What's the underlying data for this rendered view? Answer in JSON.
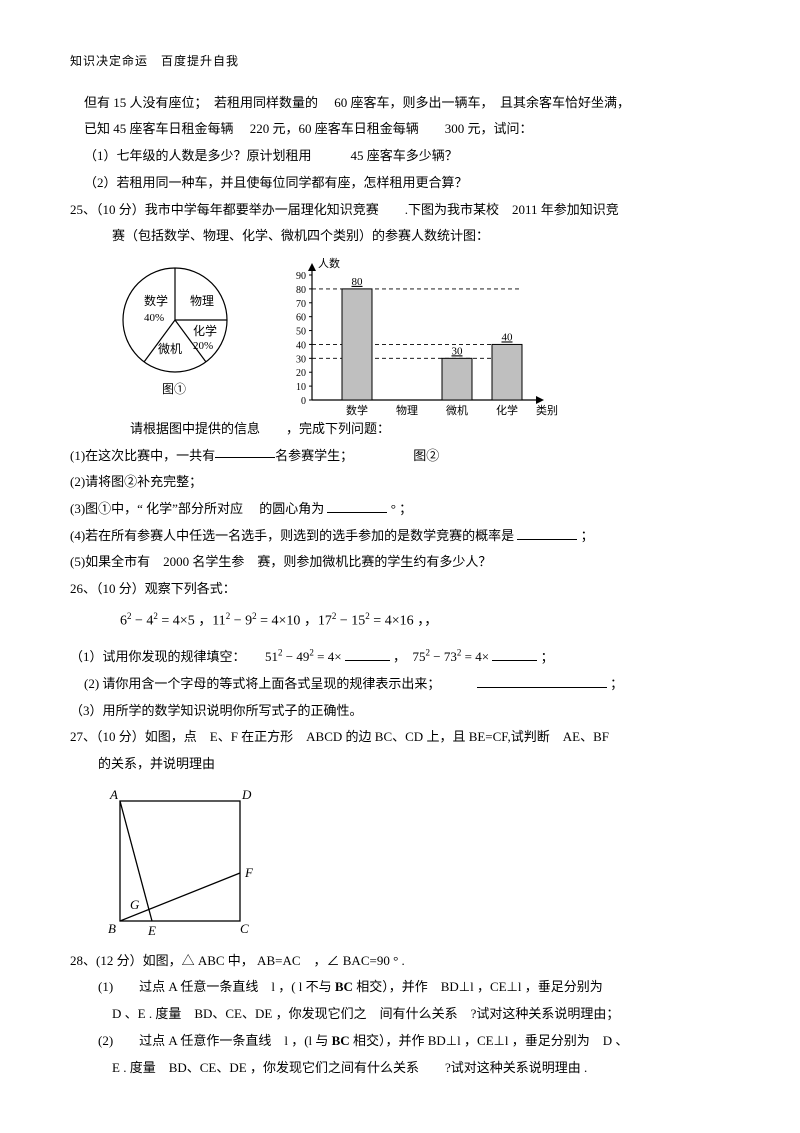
{
  "header": "知识决定命运　百度提升自我",
  "intro_lines": [
    "但有 15 人没有座位；　若租用同样数量的　 60 座客车，则多出一辆车，　且其余客车恰好坐满，",
    "已知 45 座客车日租金每辆　 220 元，60 座客车日租金每辆　　300 元，试问：",
    "（1）七年级的人数是多少？原计划租用　　　45 座客车多少辆？",
    "（2）若租用同一种车，并且使每位同学都有座，怎样租用更合算？"
  ],
  "q25": {
    "label": "25、（10 分）我市中学每年都要举办一届理化知识竞赛　　.下图为我市某校　2011 年参加知识竞",
    "label2": "赛（包括数学、物理、化学、微机四个类别）的参赛人数统计图：",
    "pie": {
      "title": "图①",
      "slices": [
        {
          "label": "数学",
          "sub": "40%",
          "color": "#ffffff"
        },
        {
          "label": "物理",
          "color": "#ffffff"
        },
        {
          "label": "化学",
          "sub": "20%",
          "color": "#ffffff"
        },
        {
          "label": "微机",
          "color": "#ffffff"
        }
      ],
      "stroke": "#000"
    },
    "bar": {
      "title": "图②",
      "y_label": "人数",
      "x_label": "类别",
      "y_max": 90,
      "y_step": 10,
      "categories": [
        "数学",
        "物理",
        "微机",
        "化学"
      ],
      "values": [
        80,
        null,
        30,
        40
      ],
      "value_labels": [
        "80",
        "",
        "30",
        "40"
      ],
      "bar_fill": "#bfbfbf",
      "bar_stroke": "#000",
      "axis_color": "#000",
      "grid_dash": "4,3",
      "dashed_refs": [
        80,
        40,
        30
      ]
    },
    "after": "请根据图中提供的信息　　，完成下列问题：",
    "sub1": "(1)在这次比赛中，一共有",
    "sub1_tail": "名参赛学生；",
    "sub2": "(2)请将图②补充完整；",
    "sub3_a": "(3)图①中，“ 化学”部分所对应　 的圆心角为",
    "sub3_b": "° ；",
    "sub4_a": "(4)若在所有参赛人中任选一名选手，则选到的选手参加的是数学竞赛的概率是",
    "sub4_b": "；",
    "sub5": "(5)如果全市有　2000 名学生参　赛，则参加微机比赛的学生约有多少人？"
  },
  "q26": {
    "label": "26、（10 分）观察下列各式：",
    "eq_line": "6² − 4² = 4×5 ，11² − 9² = 4×10 ，17² − 15² = 4×16 ，，",
    "sub1_a": "（1）试用你发现的规律填空：　　51² − 49² = 4×",
    "sub1_mid": "，　75² − 73² = 4×",
    "sub1_end": "；",
    "sub2_a": "(2) 请你用含一个字母的等式将上面各式呈现的规律表示出来；",
    "sub2_b": "；",
    "sub3": "（3）用所学的数学知识说明你所写式子的正确性。"
  },
  "q27": {
    "label": "27、（10 分）如图，点　E、F 在正方形　ABCD 的边 BC、CD 上，且 BE=CF,试判断　AE、BF",
    "label2": "的关系，并说明理由",
    "diagram": {
      "A": "A",
      "B": "B",
      "C": "C",
      "D": "D",
      "E": "E",
      "F": "F",
      "G": "G",
      "stroke": "#000"
    }
  },
  "q28": {
    "label": "28、(12 分）如图，△ ABC 中， AB=AC　，∠ BAC=90 ° .",
    "s1a": "(1)　　过点 A 任意一条直线　l ，( l 不与 ",
    "s1bold": "BC",
    "s1b": " 相交），并作　BD⊥l ，CE⊥l ，垂足分别为",
    "s1c": "D 、E . 度量　BD、CE、DE ，你发现它们之　间有什么关系　?试对这种关系说明理由；",
    "s2a": "(2)　　过点 A 任意作一条直线　l ，(l 与 ",
    "s2bold": "BC",
    "s2b": " 相交），并作 BD⊥l ，CE⊥l ，垂足分别为　D 、",
    "s2c": "E . 度量　BD、CE、DE ，你发现它们之间有什么关系　　?试对这种关系说明理由 ."
  }
}
